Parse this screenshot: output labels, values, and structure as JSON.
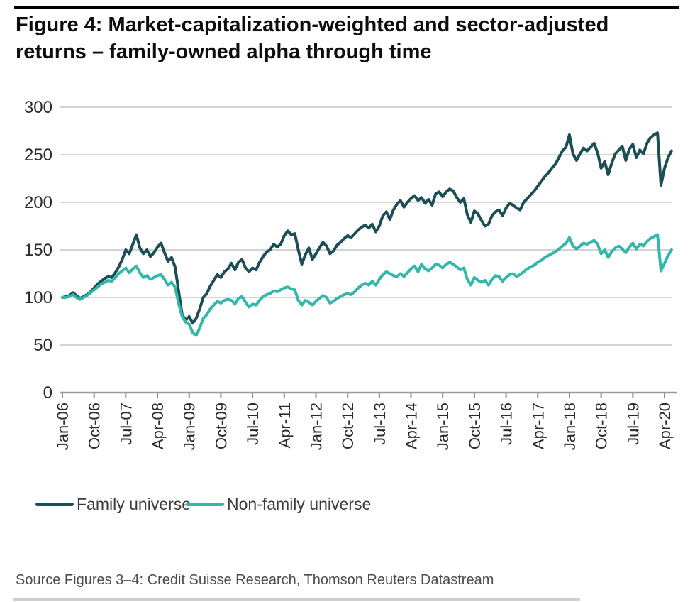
{
  "figure": {
    "title_line1": "Figure 4: Market-capitalization-weighted and sector-adjusted",
    "title_line2": "returns – family-owned alpha through time",
    "source": "Source Figures 3–4: Credit Suisse Research, Thomson Reuters Datastream"
  },
  "chart_data": {
    "type": "line",
    "title": "Figure 4: Market-capitalization-weighted and sector-adjusted returns – family-owned alpha through time",
    "xlabel": "",
    "ylabel": "",
    "ylim": [
      0,
      300
    ],
    "y_tick_step": 50,
    "y_tick_labels": [
      "0",
      "50",
      "100",
      "150",
      "200",
      "250",
      "300"
    ],
    "grid": "horizontal-on",
    "legend_position": "bottom",
    "x_frequency": "monthly",
    "x_start": "Jan-06",
    "x_end": "Jun-20",
    "x_tick_labels": [
      "Jan-06",
      "Oct-06",
      "Jul-07",
      "Apr-08",
      "Jan-09",
      "Oct-09",
      "Jul-10",
      "Apr-11",
      "Jan-12",
      "Oct-12",
      "Jul-13",
      "Apr-14",
      "Jan-15",
      "Oct-15",
      "Jul-16",
      "Apr-17",
      "Jan-18",
      "Oct-18",
      "Jul-19",
      "Apr-20"
    ],
    "x_months_per_tick": 9,
    "series": [
      {
        "name": "Family universe",
        "color": "#1b4f55",
        "values": [
          100,
          101,
          102,
          105,
          102,
          99,
          101,
          103,
          106,
          110,
          114,
          117,
          120,
          122,
          121,
          126,
          132,
          140,
          150,
          146,
          156,
          166,
          152,
          146,
          150,
          143,
          147,
          153,
          157,
          147,
          138,
          142,
          132,
          107,
          82,
          76,
          80,
          73,
          78,
          88,
          100,
          104,
          112,
          118,
          124,
          121,
          127,
          130,
          136,
          129,
          137,
          140,
          131,
          127,
          131,
          129,
          137,
          143,
          148,
          150,
          156,
          153,
          156,
          165,
          170,
          166,
          167,
          150,
          135,
          145,
          152,
          140,
          146,
          152,
          158,
          154,
          146,
          149,
          155,
          158,
          162,
          165,
          163,
          167,
          171,
          174,
          176,
          173,
          177,
          169,
          175,
          186,
          190,
          182,
          192,
          198,
          202,
          195,
          200,
          204,
          207,
          202,
          205,
          199,
          203,
          197,
          209,
          211,
          206,
          211,
          214,
          212,
          205,
          200,
          204,
          187,
          179,
          191,
          188,
          181,
          175,
          177,
          186,
          190,
          192,
          186,
          194,
          199,
          197,
          194,
          192,
          200,
          204,
          208,
          212,
          217,
          222,
          227,
          231,
          236,
          240,
          247,
          254,
          258,
          271,
          251,
          244,
          251,
          257,
          254,
          258,
          262,
          252,
          236,
          243,
          229,
          241,
          251,
          255,
          259,
          244,
          256,
          261,
          247,
          255,
          251,
          262,
          268,
          271,
          273,
          218,
          236,
          247,
          254
        ]
      },
      {
        "name": "Non-family universe",
        "color": "#31b7ab",
        "values": [
          100,
          100,
          101,
          103,
          100,
          98,
          100,
          102,
          105,
          108,
          111,
          114,
          116,
          118,
          117,
          121,
          125,
          128,
          131,
          126,
          130,
          133,
          126,
          121,
          123,
          119,
          121,
          123,
          124,
          119,
          113,
          116,
          111,
          94,
          80,
          74,
          72,
          63,
          60,
          68,
          78,
          82,
          88,
          92,
          96,
          94,
          97,
          98,
          97,
          93,
          99,
          101,
          95,
          90,
          93,
          92,
          97,
          101,
          103,
          104,
          107,
          106,
          108,
          110,
          111,
          109,
          108,
          97,
          92,
          97,
          95,
          92,
          96,
          99,
          102,
          100,
          94,
          96,
          99,
          101,
          103,
          104,
          103,
          106,
          110,
          113,
          115,
          113,
          117,
          113,
          119,
          124,
          127,
          125,
          123,
          122,
          125,
          122,
          126,
          130,
          133,
          127,
          135,
          130,
          128,
          131,
          135,
          134,
          131,
          135,
          137,
          135,
          132,
          129,
          131,
          119,
          113,
          121,
          118,
          116,
          118,
          113,
          119,
          123,
          122,
          117,
          121,
          124,
          125,
          122,
          124,
          127,
          130,
          132,
          134,
          137,
          139,
          142,
          144,
          146,
          148,
          151,
          154,
          157,
          163,
          154,
          151,
          154,
          157,
          156,
          158,
          160,
          156,
          146,
          150,
          142,
          148,
          152,
          154,
          151,
          147,
          153,
          157,
          151,
          156,
          154,
          159,
          162,
          164,
          166,
          128,
          136,
          144,
          150
        ]
      }
    ],
    "style": {
      "gridline_color": "#c6c6c6",
      "axis_color": "#9a9a9a",
      "tick_color": "#8a8a8a",
      "tick_label_color": "#2b2b2b"
    }
  }
}
